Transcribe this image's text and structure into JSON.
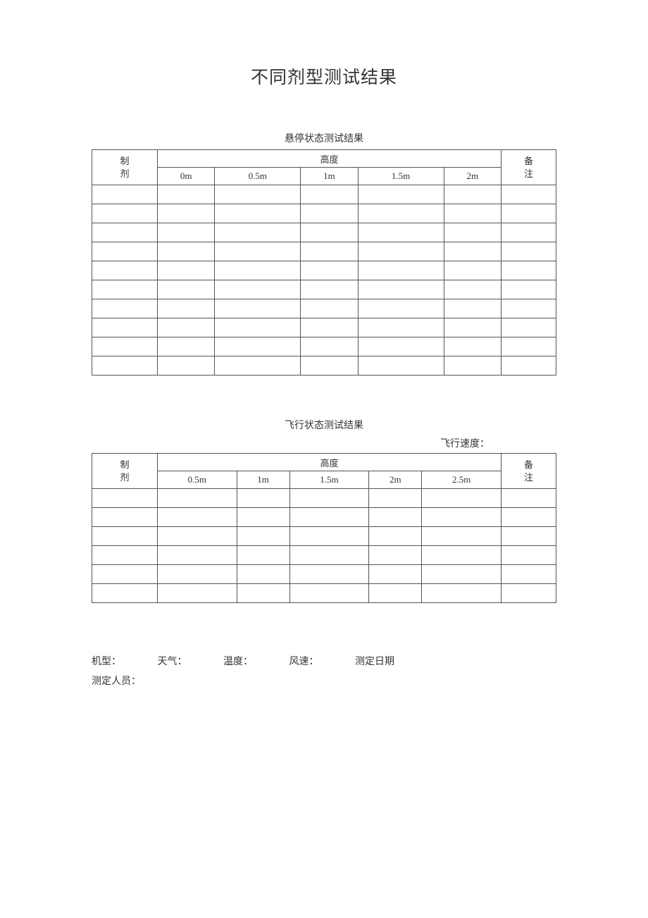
{
  "page": {
    "title": "不同剂型测试结果",
    "background_color": "#ffffff",
    "text_color": "#333333",
    "border_color": "#555555",
    "title_fontsize": 25,
    "subtitle_fontsize": 14,
    "body_fontsize": 13
  },
  "table1": {
    "caption": "悬停状态测试结果",
    "col1_header": "制剂",
    "group_header": "高度",
    "col_last_header": "备注",
    "columns": [
      "0m",
      "0.5m",
      "1m",
      "1.5m",
      "2m"
    ],
    "empty_row_count": 10
  },
  "table2": {
    "caption": "飞行状态测试结果",
    "speed_label": "飞行速度：",
    "col1_header": "制剂",
    "group_header": "高度",
    "col_last_header": "备注",
    "columns": [
      "0.5m",
      "1m",
      "1.5m",
      "2m",
      "2.5m"
    ],
    "empty_row_count": 6
  },
  "footer": {
    "machine": "机型：",
    "weather": "天气：",
    "temperature": "温度：",
    "wind": "风速：",
    "date": "测定日期",
    "person": "测定人员："
  }
}
